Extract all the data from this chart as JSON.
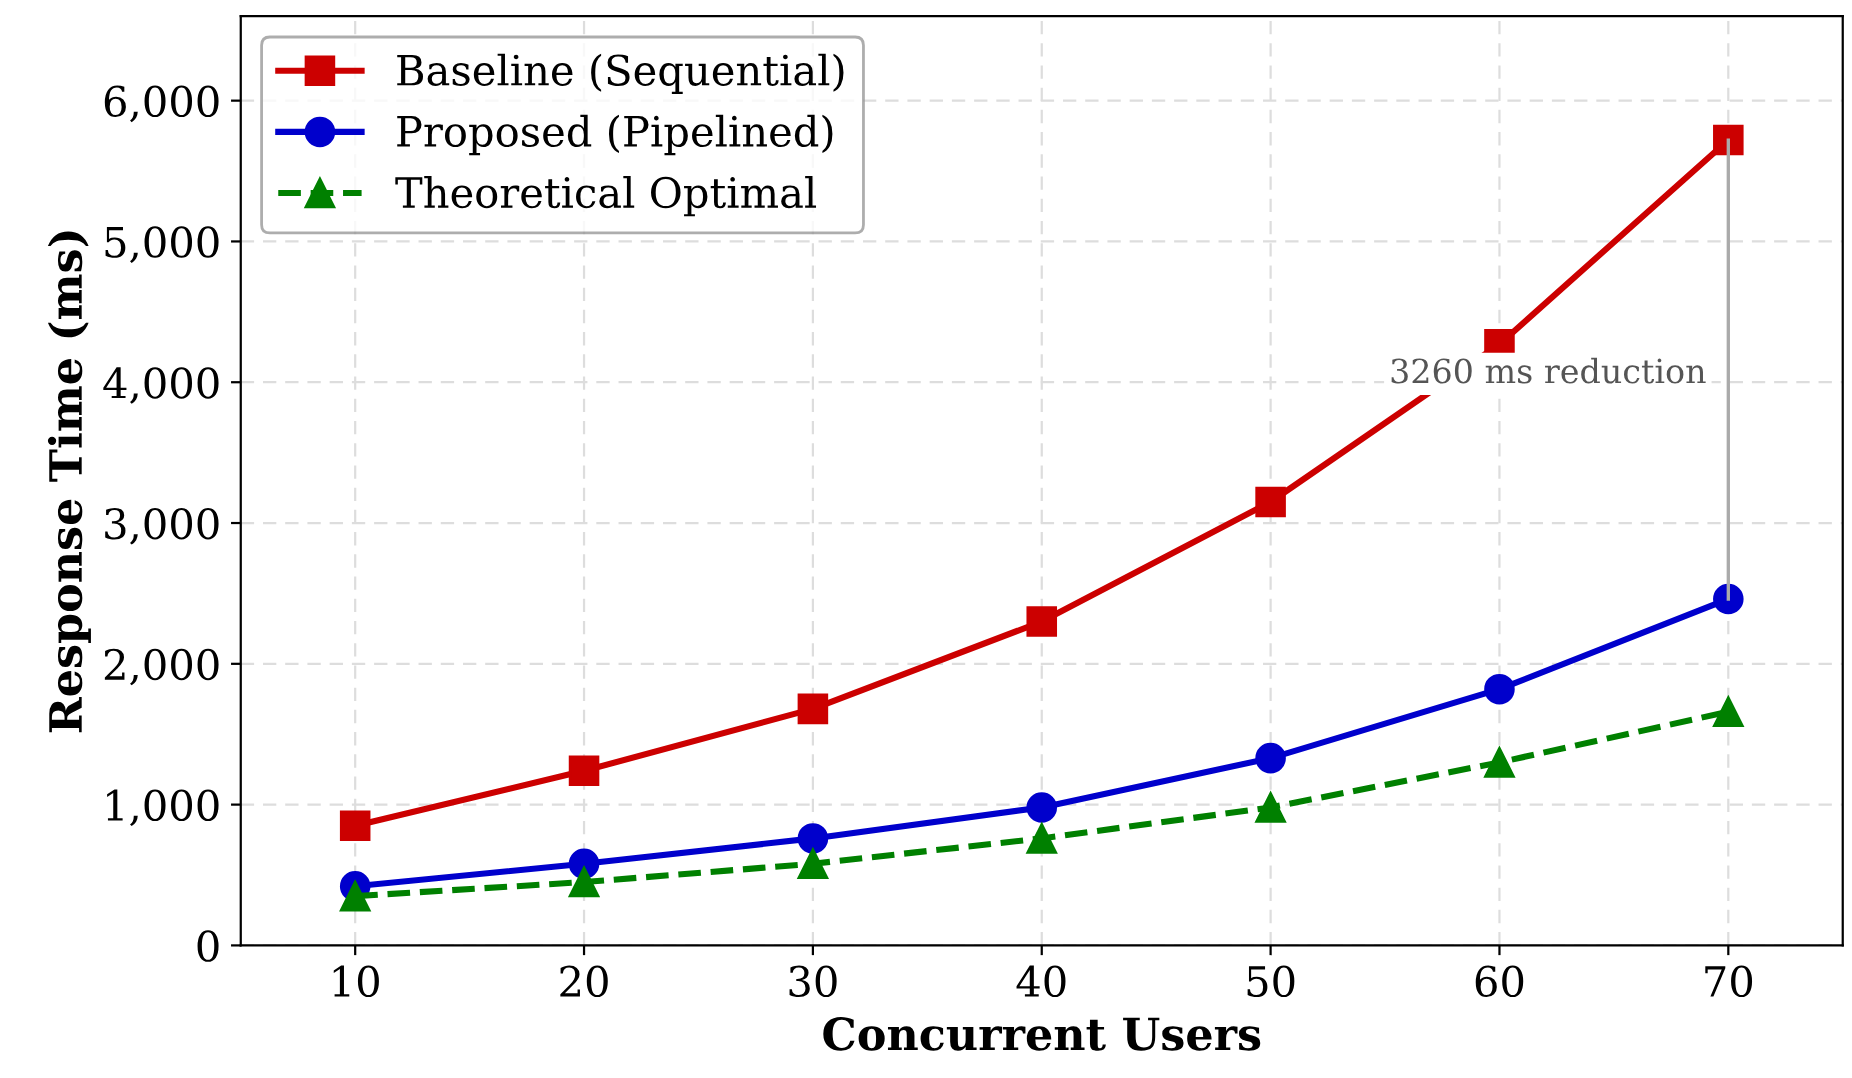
{
  "chart_data": {
    "type": "line",
    "xlabel": "Concurrent Users",
    "ylabel": "Response Time (ms)",
    "x": [
      10,
      20,
      30,
      40,
      50,
      60,
      70
    ],
    "series": [
      {
        "name": "Baseline (Sequential)",
        "color": "#cc0000",
        "values": [
          850,
          1240,
          1680,
          2300,
          3150,
          4270,
          5720
        ],
        "marker": "square",
        "line_style": "solid"
      },
      {
        "name": "Proposed (Pipelined)",
        "color": "#0000cc",
        "values": [
          420,
          580,
          760,
          980,
          1330,
          1820,
          2460
        ],
        "marker": "circle",
        "line_style": "solid"
      },
      {
        "name": "Theoretical Optimal",
        "color": "#008000",
        "values": [
          350,
          450,
          580,
          760,
          980,
          1300,
          1660
        ],
        "marker": "triangle",
        "line_style": "dashed"
      },
      {
        "color": "#aaaaaa",
        "x": [
          70,
          70
        ],
        "values": [
          5720,
          2460
        ],
        "marker": "none",
        "line_style": "solid"
      }
    ],
    "xlim": [
      5,
      75
    ],
    "xticks": [
      10,
      20,
      30,
      40,
      50,
      60,
      70
    ],
    "ylim": [
      0,
      6600
    ],
    "yticks": [
      0,
      {
        "value": 1000,
        "label": "1,000"
      },
      {
        "value": 2000,
        "label": "2,000"
      },
      {
        "value": 3000,
        "label": "3,000"
      },
      {
        "value": 4000,
        "label": "4,000"
      },
      {
        "value": 5000,
        "label": "5,000"
      },
      {
        "value": 6000,
        "label": "6,000"
      }
    ],
    "grid": true,
    "legend": "top left",
    "annotations": [
      "3260 ms reduction"
    ]
  }
}
